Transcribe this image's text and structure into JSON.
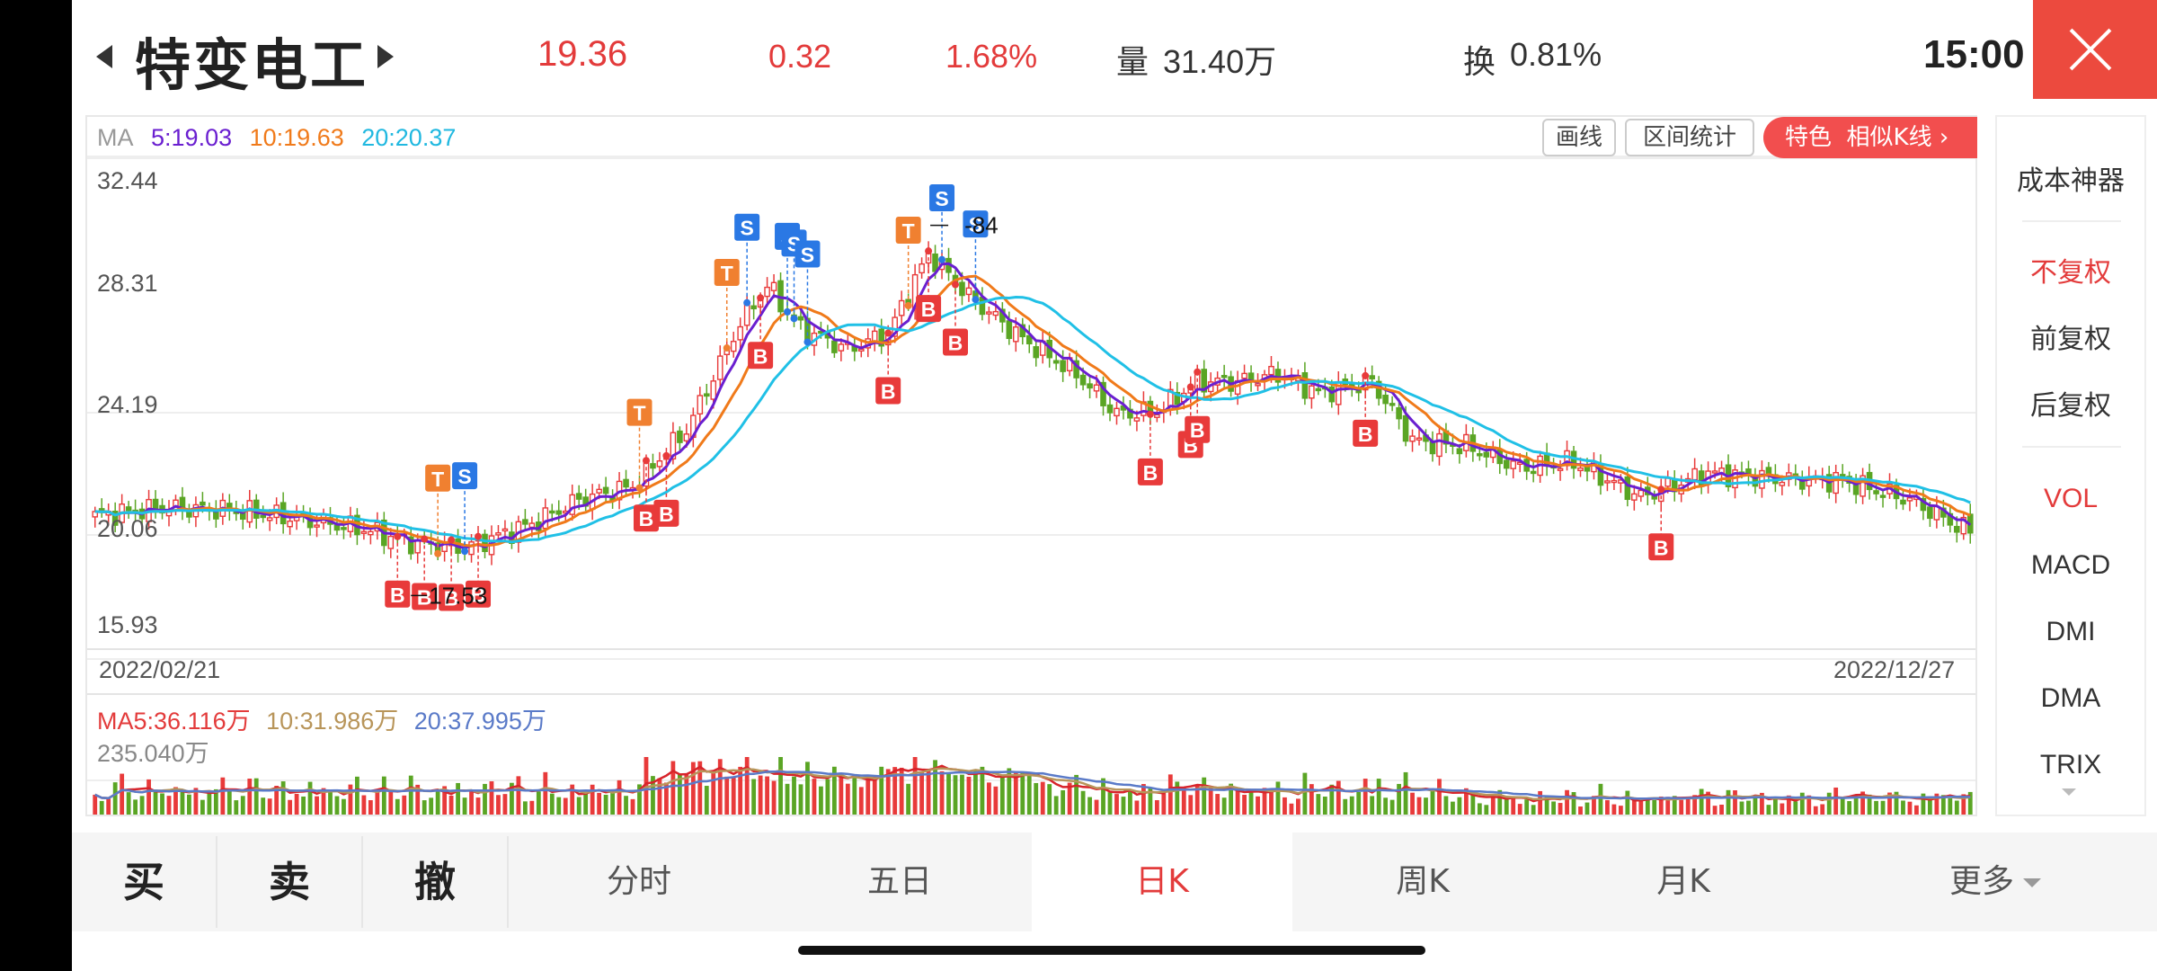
{
  "header": {
    "stock_name": "特变电工",
    "price": "19.36",
    "change": "0.32",
    "change_pct": "1.68%",
    "volume_label": "量",
    "volume_value": "31.40万",
    "turnover_label": "换",
    "turnover_value": "0.81%",
    "time": "15:00"
  },
  "ma": {
    "label": "MA",
    "ma5": "5:19.03",
    "ma10": "10:19.63",
    "ma20": "20:20.37"
  },
  "toolbar": {
    "draw_label": "画线",
    "range_stats_label": "区间统计",
    "feature_label": "特色",
    "similar_k_label": "相似K线",
    "feature_arrow": "›"
  },
  "price_axis": [
    "32.44",
    "28.31",
    "24.19",
    "20.06",
    "15.93"
  ],
  "annotations": {
    "low_label": "17.53",
    "high_label": "-84"
  },
  "date_axis": {
    "start": "2022/02/21",
    "end": "2022/12/27"
  },
  "volume": {
    "ma5": "MA5:36.116万",
    "ma10": "10:31.986万",
    "ma20": "20:37.995万",
    "max": "235.040万"
  },
  "side_menu": {
    "cost_tool": "成本神器",
    "no_adjust": "不复权",
    "forward_adjust": "前复权",
    "backward_adjust": "后复权",
    "vol": "VOL",
    "macd": "MACD",
    "dmi": "DMI",
    "dma": "DMA",
    "trix": "TRIX"
  },
  "bottom": {
    "buy": "买",
    "sell": "卖",
    "cancel": "撤",
    "tabs": [
      "分时",
      "五日",
      "日K",
      "周K",
      "月K",
      "更多"
    ]
  },
  "colors": {
    "up": "#e83a3a",
    "down": "#5aa524",
    "ma5": "#6a1fd0",
    "ma10": "#f07a1a",
    "ma20": "#20c0e6",
    "signal_buy": "#e83a3a",
    "signal_sell": "#2a78e4",
    "signal_t": "#f08030"
  },
  "chart_data": {
    "type": "candlestick",
    "x_start": "2022/02/21",
    "x_end": "2022/12/27",
    "y_ticks": [
      32.44,
      28.31,
      24.19,
      20.06,
      15.93
    ],
    "ylim": [
      15.93,
      32.44
    ],
    "high": 30.84,
    "low": 17.53,
    "last_close": 19.36,
    "close_keypoints": [
      {
        "i": 0,
        "v": 20.0
      },
      {
        "i": 10,
        "v": 20.3
      },
      {
        "i": 20,
        "v": 20.2
      },
      {
        "i": 30,
        "v": 19.9
      },
      {
        "i": 40,
        "v": 19.5
      },
      {
        "i": 47,
        "v": 19.0
      },
      {
        "i": 55,
        "v": 18.8
      },
      {
        "i": 65,
        "v": 19.7
      },
      {
        "i": 72,
        "v": 20.6
      },
      {
        "i": 80,
        "v": 21.1
      },
      {
        "i": 88,
        "v": 23.2
      },
      {
        "i": 96,
        "v": 27.2
      },
      {
        "i": 100,
        "v": 28.6
      },
      {
        "i": 105,
        "v": 27.0
      },
      {
        "i": 112,
        "v": 26.2
      },
      {
        "i": 118,
        "v": 26.8
      },
      {
        "i": 124,
        "v": 29.8
      },
      {
        "i": 130,
        "v": 28.2
      },
      {
        "i": 138,
        "v": 26.6
      },
      {
        "i": 146,
        "v": 25.3
      },
      {
        "i": 152,
        "v": 23.8
      },
      {
        "i": 158,
        "v": 23.9
      },
      {
        "i": 164,
        "v": 25.0
      },
      {
        "i": 170,
        "v": 25.0
      },
      {
        "i": 176,
        "v": 25.3
      },
      {
        "i": 182,
        "v": 24.6
      },
      {
        "i": 190,
        "v": 25.0
      },
      {
        "i": 196,
        "v": 22.8
      },
      {
        "i": 204,
        "v": 22.6
      },
      {
        "i": 212,
        "v": 21.8
      },
      {
        "i": 220,
        "v": 22.0
      },
      {
        "i": 230,
        "v": 20.7
      },
      {
        "i": 240,
        "v": 21.6
      },
      {
        "i": 250,
        "v": 21.4
      },
      {
        "i": 260,
        "v": 21.3
      },
      {
        "i": 270,
        "v": 20.6
      },
      {
        "i": 279,
        "v": 19.36
      }
    ],
    "signals": [
      {
        "type": "B",
        "i": 45
      },
      {
        "type": "B",
        "i": 49
      },
      {
        "type": "B",
        "i": 53
      },
      {
        "type": "T",
        "i": 51
      },
      {
        "type": "S",
        "i": 55
      },
      {
        "type": "B",
        "i": 57
      },
      {
        "type": "B",
        "i": 82
      },
      {
        "type": "B",
        "i": 85
      },
      {
        "type": "T",
        "i": 81
      },
      {
        "type": "T",
        "i": 94
      },
      {
        "type": "S",
        "i": 97
      },
      {
        "type": "B",
        "i": 99
      },
      {
        "type": "S",
        "i": 103
      },
      {
        "type": "S",
        "i": 104
      },
      {
        "type": "S",
        "i": 106
      },
      {
        "type": "B",
        "i": 118
      },
      {
        "type": "T",
        "i": 121
      },
      {
        "type": "B",
        "i": 124
      },
      {
        "type": "S",
        "i": 126
      },
      {
        "type": "B",
        "i": 128
      },
      {
        "type": "S",
        "i": 131
      },
      {
        "type": "B",
        "i": 157
      },
      {
        "type": "B",
        "i": 163
      },
      {
        "type": "B",
        "i": 164
      },
      {
        "type": "B",
        "i": 189
      },
      {
        "type": "B",
        "i": 233
      }
    ]
  }
}
